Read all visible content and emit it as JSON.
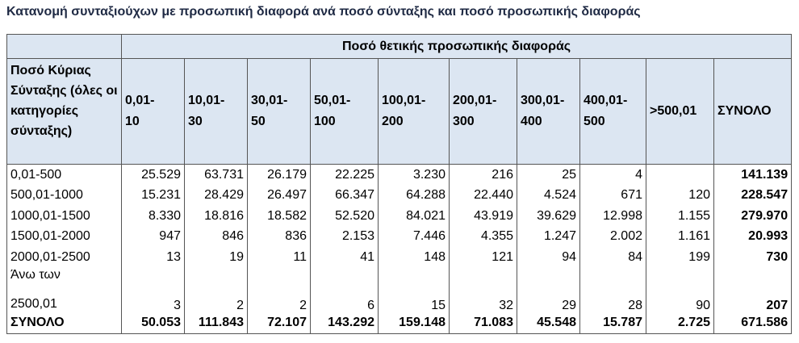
{
  "title": "Κατανομή συνταξιούχων με προσωπική διαφορά ανά ποσό σύνταξης και ποσό προσωπικής διαφοράς",
  "table": {
    "group_header": "Ποσό θετικής προσωπικής διαφοράς",
    "row_header": "Ποσό Κύριας Σύνταξης (όλες οι κατηγορίες σύνταξης)",
    "columns": [
      "0,01-10",
      "10,01-30",
      "30,01-50",
      "50,01-100",
      "100,01-200",
      "200,01-300",
      "300,01-400",
      "400,01-500",
      ">500,01",
      "ΣΥΝΟΛΟ"
    ],
    "rows": [
      {
        "label": [
          "0,01-500"
        ],
        "values": [
          "25.529",
          "63.731",
          "26.179",
          "22.225",
          "3.230",
          "216",
          "25",
          "4",
          null,
          "141.139"
        ]
      },
      {
        "label": [
          "500,01-1000"
        ],
        "values": [
          "15.231",
          "28.429",
          "26.497",
          "66.347",
          "64.288",
          "22.440",
          "4.524",
          "671",
          "120",
          "228.547"
        ]
      },
      {
        "label": [
          "1000,01-1500"
        ],
        "values": [
          "8.330",
          "18.816",
          "18.582",
          "52.520",
          "84.021",
          "43.919",
          "39.629",
          "12.998",
          "1.155",
          "279.970"
        ]
      },
      {
        "label": [
          "1500,01-2000"
        ],
        "values": [
          "947",
          "846",
          "836",
          "2.153",
          "7.446",
          "4.355",
          "1.247",
          "2.002",
          "1.161",
          "20.993"
        ]
      },
      {
        "label": [
          "2000,01-2500"
        ],
        "values": [
          "13",
          "19",
          "11",
          "41",
          "148",
          "121",
          "94",
          "84",
          "199",
          "730"
        ]
      },
      {
        "label": [
          "Άνω των",
          "2500,01"
        ],
        "values": [
          "3",
          "2",
          "2",
          "6",
          "15",
          "32",
          "29",
          "28",
          "90",
          "207"
        ]
      },
      {
        "label": [
          "ΣΥΝΟΛΟ"
        ],
        "values": [
          "50.053",
          "111.843",
          "72.107",
          "143.292",
          "159.148",
          "71.083",
          "45.548",
          "15.787",
          "2.725",
          "671.586"
        ]
      }
    ]
  }
}
